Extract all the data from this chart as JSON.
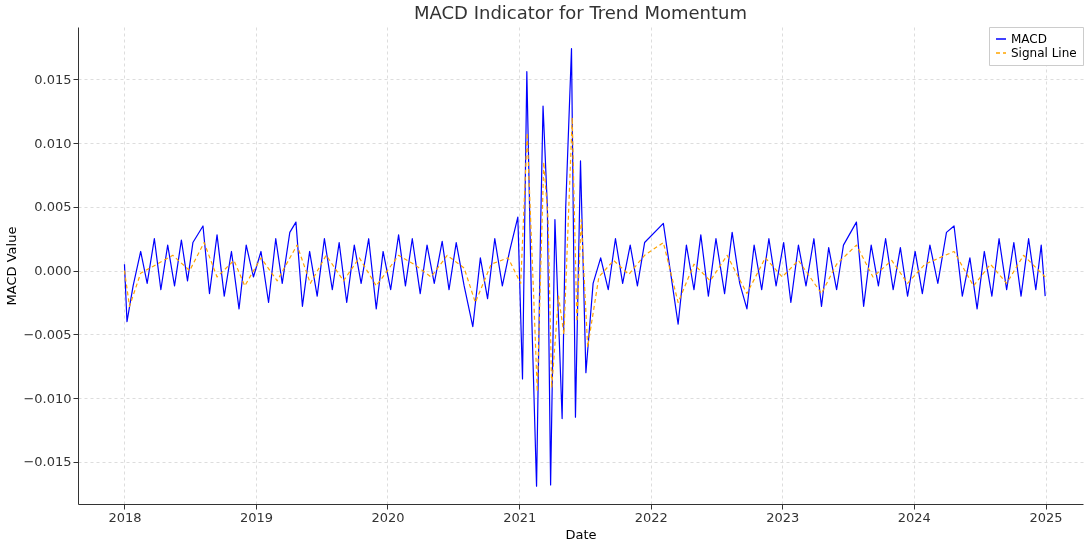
{
  "chart_data": {
    "type": "line",
    "title": "MACD Indicator for Trend Momentum",
    "xlabel": "Date",
    "ylabel": "MACD Value",
    "xlim": [
      "2017-08-25",
      "2025-04-15"
    ],
    "xticks": [
      "2018",
      "2019",
      "2020",
      "2021",
      "2022",
      "2023",
      "2024",
      "2025"
    ],
    "ylim": [
      -0.0183,
      0.0191
    ],
    "yticks": [
      {
        "value": -0.015,
        "label": "−0.015"
      },
      {
        "value": -0.01,
        "label": "−0.010"
      },
      {
        "value": -0.005,
        "label": "−0.005"
      },
      {
        "value": 0,
        "label": "0.000"
      },
      {
        "value": 0.005,
        "label": "0.005"
      },
      {
        "value": 0.01,
        "label": "0.010"
      },
      {
        "value": 0.015,
        "label": "0.015"
      }
    ],
    "grid": true,
    "legend": "top right",
    "series": [
      {
        "name": "MACD",
        "color": "#0000ff",
        "line_style": "solid",
        "x": [
          "2018-01-01",
          "2018-01-08",
          "2018-01-25",
          "2018-02-15",
          "2018-03-05",
          "2018-03-25",
          "2018-04-12",
          "2018-05-01",
          "2018-05-20",
          "2018-06-08",
          "2018-06-25",
          "2018-07-10",
          "2018-08-07",
          "2018-08-25",
          "2018-09-15",
          "2018-10-05",
          "2018-10-25",
          "2018-11-15",
          "2018-12-05",
          "2018-12-25",
          "2019-01-15",
          "2019-02-05",
          "2019-02-25",
          "2019-03-15",
          "2019-04-05",
          "2019-04-22",
          "2019-05-10",
          "2019-05-30",
          "2019-06-20",
          "2019-07-10",
          "2019-08-01",
          "2019-08-20",
          "2019-09-10",
          "2019-10-01",
          "2019-10-20",
          "2019-11-10",
          "2019-12-01",
          "2019-12-20",
          "2020-01-10",
          "2020-02-01",
          "2020-02-20",
          "2020-03-10",
          "2020-04-01",
          "2020-04-20",
          "2020-05-10",
          "2020-06-01",
          "2020-06-20",
          "2020-07-10",
          "2020-08-01",
          "2020-08-25",
          "2020-09-15",
          "2020-10-05",
          "2020-10-25",
          "2020-11-15",
          "2020-12-05",
          "2020-12-28",
          "2021-01-10",
          "2021-01-22",
          "2021-02-05",
          "2021-02-18",
          "2021-03-01",
          "2021-03-08",
          "2021-03-20",
          "2021-03-29",
          "2021-04-10",
          "2021-04-30",
          "2021-05-10",
          "2021-05-26",
          "2021-06-06",
          "2021-06-20",
          "2021-07-05",
          "2021-07-25",
          "2021-08-15",
          "2021-09-05",
          "2021-09-25",
          "2021-10-15",
          "2021-11-05",
          "2021-11-25",
          "2021-12-15",
          "2022-02-05",
          "2022-03-18",
          "2022-04-10",
          "2022-05-01",
          "2022-05-20",
          "2022-06-10",
          "2022-07-01",
          "2022-07-25",
          "2022-08-15",
          "2022-09-05",
          "2022-09-25",
          "2022-10-15",
          "2022-11-05",
          "2022-11-25",
          "2022-12-15",
          "2023-01-05",
          "2023-01-25",
          "2023-02-15",
          "2023-03-08",
          "2023-03-30",
          "2023-04-20",
          "2023-05-10",
          "2023-06-01",
          "2023-06-20",
          "2023-07-26",
          "2023-08-15",
          "2023-09-05",
          "2023-09-25",
          "2023-10-15",
          "2023-11-05",
          "2023-11-25",
          "2023-12-15",
          "2024-01-05",
          "2024-01-25",
          "2024-02-15",
          "2024-03-08",
          "2024-04-01",
          "2024-04-22",
          "2024-05-15",
          "2024-06-05",
          "2024-06-25",
          "2024-07-15",
          "2024-08-05",
          "2024-08-25",
          "2024-09-15",
          "2024-10-05",
          "2024-10-25",
          "2024-11-15",
          "2024-12-05",
          "2024-12-20",
          "2024-12-31"
        ],
        "values": [
          0.0005,
          -0.004,
          -0.0012,
          0.0015,
          -0.001,
          0.0025,
          -0.0015,
          0.002,
          -0.0012,
          0.0024,
          -0.0008,
          0.0022,
          0.0035,
          -0.0018,
          0.0028,
          -0.002,
          0.0015,
          -0.003,
          0.002,
          -0.0005,
          0.0015,
          -0.0025,
          0.0025,
          -0.001,
          0.003,
          0.0038,
          -0.0028,
          0.0015,
          -0.002,
          0.0025,
          -0.0015,
          0.0022,
          -0.0025,
          0.002,
          -0.001,
          0.0025,
          -0.003,
          0.0015,
          -0.0015,
          0.0028,
          -0.0012,
          0.0025,
          -0.0018,
          0.002,
          -0.001,
          0.0023,
          -0.0015,
          0.0022,
          -0.0012,
          -0.0044,
          0.001,
          -0.0022,
          0.0025,
          -0.0012,
          0.0015,
          0.0042,
          -0.0085,
          0.0156,
          -0.004,
          -0.0169,
          0.003,
          0.0129,
          0.005,
          -0.0168,
          0.004,
          -0.0116,
          0.005,
          0.0174,
          -0.0115,
          0.0086,
          -0.008,
          -0.001,
          0.001,
          -0.0015,
          0.0025,
          -0.001,
          0.002,
          -0.0012,
          0.0022,
          0.0037,
          -0.0042,
          0.002,
          -0.0015,
          0.0028,
          -0.002,
          0.0025,
          -0.0018,
          0.003,
          -0.001,
          -0.003,
          0.002,
          -0.0015,
          0.0025,
          -0.0012,
          0.0022,
          -0.0025,
          0.002,
          -0.0012,
          0.0025,
          -0.0028,
          0.0018,
          -0.0015,
          0.002,
          0.0038,
          -0.0028,
          0.002,
          -0.0012,
          0.0025,
          -0.0015,
          0.0018,
          -0.002,
          0.0015,
          -0.0018,
          0.002,
          -0.001,
          0.003,
          0.0035,
          -0.002,
          0.001,
          -0.003,
          0.0015,
          -0.002,
          0.0025,
          -0.0015,
          0.0022,
          -0.002,
          0.0025,
          -0.0015,
          0.002,
          -0.002
        ]
      },
      {
        "name": "Signal Line",
        "color": "#ffa500",
        "line_style": "dashed",
        "x": [
          "2018-01-01",
          "2018-01-15",
          "2018-02-15",
          "2018-04-01",
          "2018-05-15",
          "2018-07-01",
          "2018-08-10",
          "2018-09-15",
          "2018-11-01",
          "2018-12-01",
          "2019-01-15",
          "2019-03-01",
          "2019-04-25",
          "2019-06-01",
          "2019-07-15",
          "2019-09-01",
          "2019-10-15",
          "2019-12-01",
          "2020-02-01",
          "2020-03-15",
          "2020-05-01",
          "2020-06-15",
          "2020-08-01",
          "2020-09-01",
          "2020-10-15",
          "2020-12-01",
          "2021-01-05",
          "2021-01-23",
          "2021-02-10",
          "2021-02-20",
          "2021-03-10",
          "2021-03-22",
          "2021-04-01",
          "2021-04-20",
          "2021-05-05",
          "2021-05-28",
          "2021-06-10",
          "2021-06-22",
          "2021-07-10",
          "2021-08-10",
          "2021-09-20",
          "2021-11-01",
          "2021-12-15",
          "2022-02-05",
          "2022-03-18",
          "2022-05-01",
          "2022-06-15",
          "2022-08-01",
          "2022-09-25",
          "2022-11-15",
          "2023-01-01",
          "2023-02-15",
          "2023-04-20",
          "2023-06-01",
          "2023-07-26",
          "2023-09-10",
          "2023-11-01",
          "2023-12-15",
          "2024-02-01",
          "2024-04-22",
          "2024-06-15",
          "2024-08-01",
          "2024-09-15",
          "2024-11-01",
          "2024-12-31"
        ],
        "values": [
          0.0,
          -0.0028,
          -0.0002,
          0.0005,
          0.0012,
          0.0,
          0.0022,
          -0.0005,
          0.0008,
          -0.0012,
          0.001,
          -0.0008,
          0.002,
          -0.001,
          0.0012,
          -0.0008,
          0.001,
          -0.0012,
          0.0012,
          0.0005,
          -0.0005,
          0.0012,
          0.0002,
          -0.0025,
          0.0005,
          0.001,
          -0.001,
          0.0108,
          -0.002,
          -0.0095,
          0.0085,
          0.004,
          -0.0092,
          -0.002,
          -0.005,
          0.012,
          -0.004,
          0.004,
          -0.006,
          -0.0005,
          0.0008,
          -0.0003,
          0.0012,
          0.0022,
          -0.0025,
          0.0005,
          -0.0008,
          0.0012,
          -0.0018,
          0.001,
          -0.0005,
          0.0008,
          -0.0018,
          0.0005,
          0.002,
          -0.0005,
          0.0008,
          -0.001,
          0.0005,
          0.0015,
          -0.0012,
          0.0005,
          -0.001,
          0.0012,
          -0.0005
        ]
      }
    ]
  }
}
